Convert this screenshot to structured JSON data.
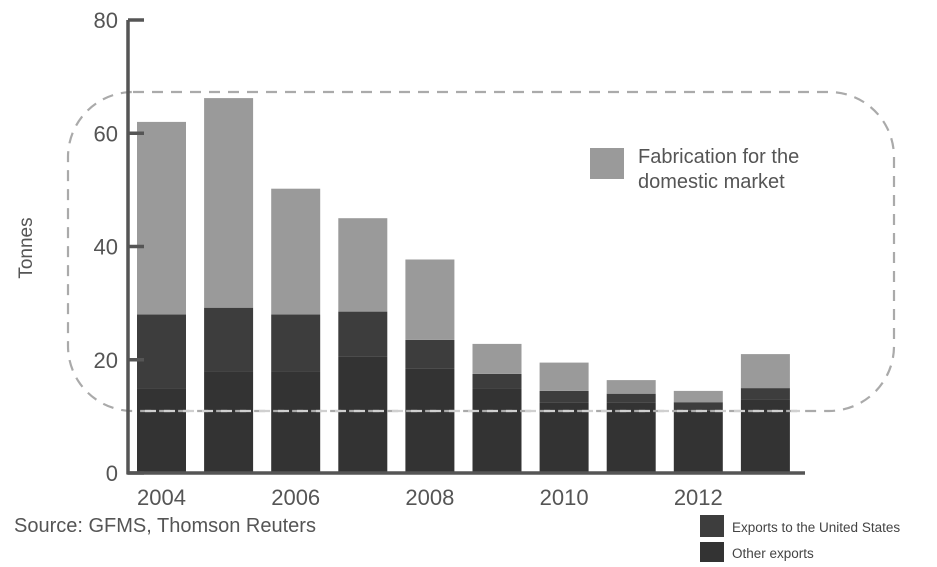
{
  "chart_data": {
    "type": "bar",
    "stacked": true,
    "x": [
      2004,
      2005,
      2006,
      2007,
      2008,
      2009,
      2010,
      2011,
      2012,
      2013
    ],
    "x_tick_labels": [
      "2004",
      "2006",
      "2008",
      "2010",
      "2012"
    ],
    "x_tick_values": [
      2004,
      2006,
      2008,
      2010,
      2012
    ],
    "series": [
      {
        "name": "Other exports",
        "color": "#333333",
        "values": [
          15,
          18,
          18,
          20.5,
          18.5,
          15,
          12.5,
          12.5,
          11,
          13
        ]
      },
      {
        "name": "Exports to the United States",
        "color": "#3d3d3d",
        "values": [
          13,
          11.2,
          10,
          8,
          5,
          2.5,
          2,
          1.5,
          1.5,
          2
        ]
      },
      {
        "name": "Fabrication for the domestic market",
        "color": "#9a9a9a",
        "values": [
          34,
          37,
          22.2,
          16.5,
          14.2,
          5.3,
          5,
          2.4,
          2,
          6
        ]
      }
    ],
    "ylabel": "Tonnes",
    "xlabel": "",
    "ylim": [
      0,
      80
    ],
    "y_ticks": [
      0,
      20,
      40,
      60,
      80
    ],
    "grid": false,
    "annotations": {
      "source": "Source: GFMS, Thomson Reuters",
      "highlight_box": "dashed rounded outline around domestic fabrication portion"
    },
    "legend": {
      "placement": "inside-right and bottom-right",
      "entries": [
        {
          "label": "Fabrication for the",
          "label2": "domestic market",
          "color": "#9a9a9a"
        },
        {
          "label": "Exports to the United States",
          "color": "#3d3d3d"
        },
        {
          "label": "Other exports",
          "color": "#333333"
        }
      ]
    }
  }
}
